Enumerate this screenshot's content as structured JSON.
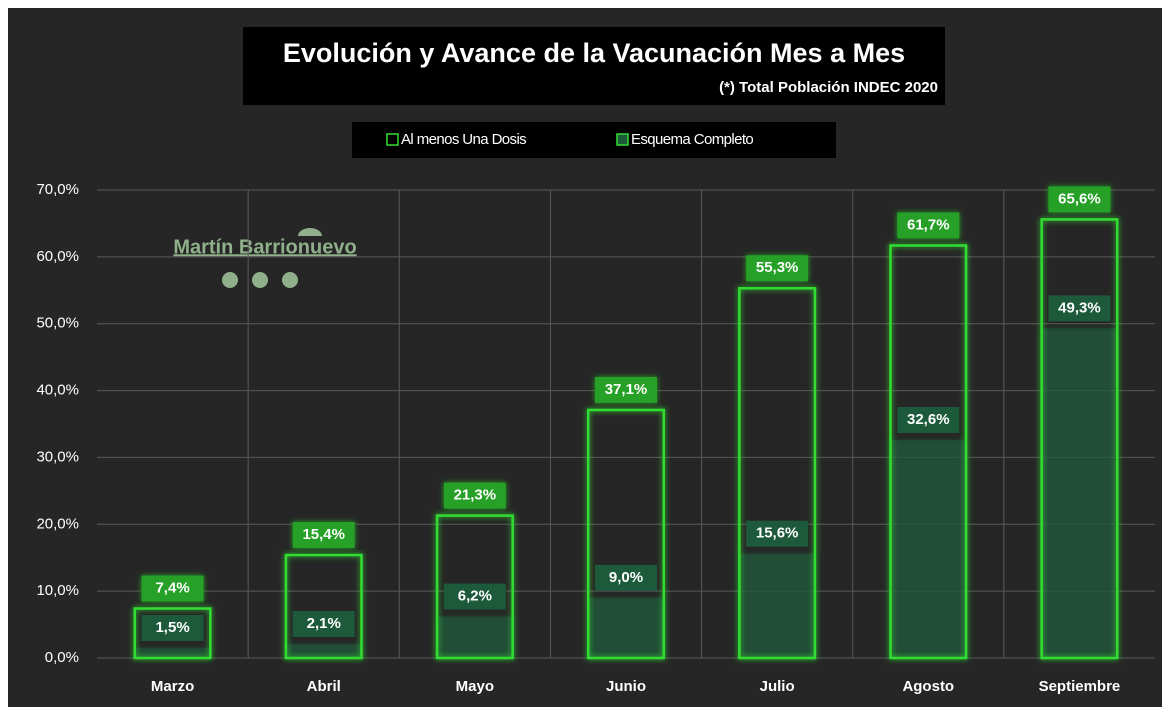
{
  "chart_data": {
    "type": "bar",
    "title": "Evolución y Avance de la Vacunación Mes a Mes",
    "subtitle": "(*) Total Población  INDEC 2020",
    "annotations": [
      "Martín Barrionuevo"
    ],
    "categories": [
      "Marzo",
      "Abril",
      "Mayo",
      "Junio",
      "Julio",
      "Agosto",
      "Septiembre"
    ],
    "series": [
      {
        "name": "Al menos Una Dosis",
        "color": "#33dd33",
        "values": [
          7.4,
          15.4,
          21.3,
          37.1,
          55.3,
          61.7,
          65.6
        ],
        "value_labels": [
          "7,4%",
          "15,4%",
          "21,3%",
          "37,1%",
          "55,3%",
          "61,7%",
          "65,6%"
        ]
      },
      {
        "name": "Esquema Completo",
        "color": "#1d5a3c",
        "values": [
          1.5,
          2.1,
          6.2,
          9.0,
          15.6,
          32.6,
          49.3
        ],
        "value_labels": [
          "1,5%",
          "2,1%",
          "6,2%",
          "9,0%",
          "15,6%",
          "32,6%",
          "49,3%"
        ]
      }
    ],
    "ylim": [
      0,
      70
    ],
    "yticks": [
      {
        "value": 0,
        "label": "0,0%"
      },
      {
        "value": 10,
        "label": "10,0%"
      },
      {
        "value": 20,
        "label": "20,0%"
      },
      {
        "value": 30,
        "label": "30,0%"
      },
      {
        "value": 40,
        "label": "40,0%"
      },
      {
        "value": 50,
        "label": "50,0%"
      },
      {
        "value": 60,
        "label": "60,0%"
      },
      {
        "value": 70,
        "label": "70,0%"
      }
    ],
    "grid": true,
    "legend": "top"
  }
}
